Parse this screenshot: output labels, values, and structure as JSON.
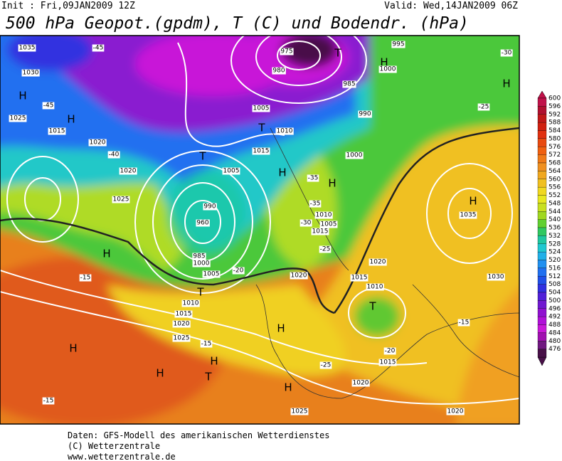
{
  "header": {
    "init": "Init : Fri,09JAN2009 12Z",
    "valid": "Valid: Wed,14JAN2009 06Z",
    "title": "500 hPa Geopot.(gpdm), T (C) und Bodendr. (hPa)"
  },
  "colorbar": {
    "labels": [
      600,
      596,
      592,
      588,
      584,
      580,
      576,
      572,
      568,
      564,
      560,
      556,
      552,
      548,
      544,
      540,
      536,
      532,
      528,
      524,
      520,
      516,
      512,
      508,
      504,
      500,
      496,
      492,
      488,
      484,
      480,
      476
    ],
    "colors": [
      "#c0124a",
      "#b01030",
      "#c01818",
      "#d02010",
      "#e03010",
      "#e84a10",
      "#f06010",
      "#f07a18",
      "#f09020",
      "#f0a820",
      "#f0c020",
      "#f0d820",
      "#e8e820",
      "#c8e020",
      "#a0d820",
      "#60d030",
      "#30c860",
      "#20c8a0",
      "#20c8d0",
      "#20b0e8",
      "#2090f0",
      "#2070f0",
      "#2050e8",
      "#3030e0",
      "#5020d8",
      "#7018d0",
      "#9010d0",
      "#b010d8",
      "#c818d8",
      "#a010b0",
      "#701880",
      "#481048"
    ]
  },
  "map_labels": [
    "1035",
    "-45",
    "1030",
    "H",
    "H",
    "1025",
    "-45",
    "1015",
    "1020",
    "-40",
    "1020",
    "1025",
    "T",
    "960",
    "990",
    "1000",
    "985",
    "H",
    "H",
    "H",
    "T",
    "-15",
    "-15",
    "-20",
    "H",
    "T",
    "1005",
    "975",
    "980",
    "T",
    "985",
    "990",
    "995",
    "H",
    "1000",
    "H",
    "-30",
    "-25",
    "1035",
    "H",
    "1030",
    "-15",
    "T",
    "1020",
    "1015",
    "1010",
    "-20",
    "1015",
    "H",
    "H",
    "1025",
    "1020",
    "1020",
    "-25",
    "H",
    "-15",
    "1025",
    "1020",
    "1015",
    "1010",
    "T",
    "1005",
    "1005",
    "1015",
    "1010",
    "1000",
    "1005",
    "1010",
    "1015",
    "-25",
    "1020",
    "-30",
    "-35",
    "H",
    "-35"
  ],
  "footer": [
    "Daten: GFS-Modell des amerikanischen Wetterdienstes",
    "(C) Wetterzentrale",
    "www.wetterzentrale.de"
  ]
}
